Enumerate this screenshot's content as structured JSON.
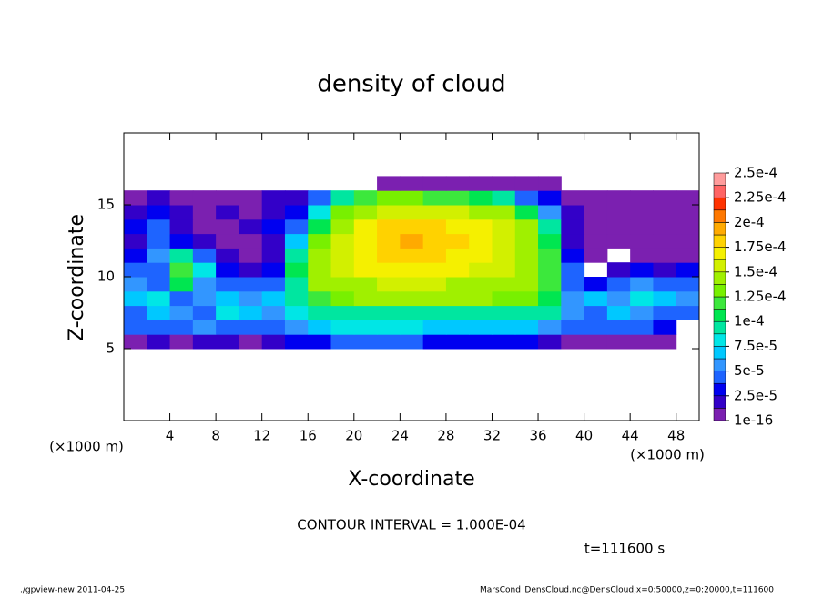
{
  "chart_data": {
    "type": "heatmap",
    "title": "density of cloud",
    "x_label": "X-coordinate",
    "y_label": "Z-coordinate",
    "x_units": "(×1000 m)",
    "y_units": "(×1000 m)",
    "annotations": [
      "CONTOUR INTERVAL = 1.000E-04",
      "t=111600 s"
    ],
    "footer_left": "./gpview-new  2011-04-25",
    "footer_right": "MarsCond_DensCloud.nc@DensCloud,x=0:50000,z=0:20000,t=111600",
    "xlim": [
      0,
      50
    ],
    "xticks": [
      4,
      8,
      12,
      16,
      20,
      24,
      28,
      32,
      36,
      40,
      44,
      48
    ],
    "ylim": [
      0,
      20
    ],
    "yticks": [
      5,
      10,
      15
    ],
    "x": [
      1,
      3,
      5,
      7,
      9,
      11,
      13,
      15,
      17,
      19,
      21,
      23,
      25,
      27,
      29,
      31,
      33,
      35,
      37,
      39,
      41,
      43,
      45,
      47,
      49
    ],
    "y": [
      5.5,
      6.5,
      7.5,
      8.5,
      9.5,
      10.5,
      11.5,
      12.5,
      13.5,
      14.5,
      15.5,
      16.5
    ],
    "z": [
      [
        1e-05,
        2e-05,
        1e-05,
        2e-05,
        2e-05,
        1e-05,
        2e-05,
        3e-05,
        3e-05,
        4e-05,
        4e-05,
        4e-05,
        4e-05,
        3e-05,
        3e-05,
        3e-05,
        3e-05,
        3e-05,
        2e-05,
        1e-05,
        1e-05,
        1e-05,
        1e-05,
        1e-05,
        null
      ],
      [
        4e-05,
        5e-05,
        4e-05,
        6e-05,
        5e-05,
        4e-05,
        5e-05,
        6e-05,
        7e-05,
        8e-05,
        8e-05,
        8e-05,
        8e-05,
        7e-05,
        7e-05,
        7e-05,
        7e-05,
        7e-05,
        6e-05,
        5e-05,
        4e-05,
        5e-05,
        4e-05,
        3e-05,
        null
      ],
      [
        5e-05,
        7e-05,
        6e-05,
        5e-05,
        8e-05,
        7e-05,
        6e-05,
        8e-05,
        9e-05,
        0.0001,
        0.0001,
        0.0001,
        0.0001,
        0.0001,
        0.0001,
        0.0001,
        0.0001,
        0.0001,
        9e-05,
        6e-05,
        5e-05,
        7e-05,
        6e-05,
        5e-05,
        4e-05
      ],
      [
        7e-05,
        8e-05,
        5e-05,
        6e-05,
        7e-05,
        6e-05,
        7e-05,
        9e-05,
        0.00012,
        0.00013,
        0.00014,
        0.00014,
        0.00014,
        0.00014,
        0.00014,
        0.00014,
        0.00013,
        0.00013,
        0.00011,
        6e-05,
        7e-05,
        6e-05,
        8e-05,
        7e-05,
        6e-05
      ],
      [
        6e-05,
        4e-05,
        0.00011,
        6e-05,
        4e-05,
        5e-05,
        4e-05,
        0.0001,
        0.00014,
        0.00015,
        0.00015,
        0.00016,
        0.00016,
        0.00016,
        0.00015,
        0.00015,
        0.00015,
        0.00014,
        0.00012,
        5e-05,
        3e-05,
        4e-05,
        6e-05,
        5e-05,
        4e-05
      ],
      [
        4e-05,
        5e-05,
        0.00012,
        8e-05,
        3e-05,
        2e-05,
        3e-05,
        0.00011,
        0.00015,
        0.00016,
        0.00017,
        0.00017,
        0.00017,
        0.00017,
        0.00017,
        0.00016,
        0.00016,
        0.00015,
        0.00012,
        4e-05,
        null,
        2e-05,
        3e-05,
        2e-05,
        3e-05
      ],
      [
        3e-05,
        6e-05,
        9e-05,
        4e-05,
        2e-05,
        1e-05,
        2e-05,
        9e-05,
        0.00014,
        0.00016,
        0.00017,
        0.00018,
        0.00018,
        0.00018,
        0.00017,
        0.00017,
        0.00016,
        0.00015,
        0.00012,
        3e-05,
        1e-05,
        null,
        1e-05,
        1e-05,
        1e-05
      ],
      [
        2e-05,
        5e-05,
        3e-05,
        2e-05,
        1e-05,
        1e-05,
        2e-05,
        7e-05,
        0.00013,
        0.00016,
        0.00017,
        0.00018,
        0.00019,
        0.00018,
        0.00018,
        0.00017,
        0.00016,
        0.00015,
        0.00011,
        2e-05,
        1e-05,
        1e-05,
        1e-05,
        1e-05,
        1e-05
      ],
      [
        3e-05,
        4e-05,
        2e-05,
        1e-05,
        1e-05,
        2e-05,
        3e-05,
        5e-05,
        0.00011,
        0.00015,
        0.00017,
        0.00018,
        0.00018,
        0.00018,
        0.00017,
        0.00017,
        0.00016,
        0.00014,
        9e-05,
        2e-05,
        1e-05,
        1e-05,
        1e-05,
        1e-05,
        1e-05
      ],
      [
        2e-05,
        3e-05,
        2e-05,
        1e-05,
        2e-05,
        1e-05,
        2e-05,
        3e-05,
        8e-05,
        0.00013,
        0.00015,
        0.00016,
        0.00016,
        0.00016,
        0.00016,
        0.00015,
        0.00014,
        0.00011,
        6e-05,
        2e-05,
        1e-05,
        1e-05,
        1e-05,
        1e-05,
        1e-05
      ],
      [
        1e-05,
        2e-05,
        1e-05,
        1e-05,
        1e-05,
        1e-05,
        2e-05,
        2e-05,
        4e-05,
        9e-05,
        0.00012,
        0.00013,
        0.00013,
        0.00012,
        0.00012,
        0.00011,
        9e-05,
        5e-05,
        3e-05,
        1e-05,
        1e-05,
        1e-05,
        1e-05,
        1e-05,
        1e-05
      ],
      [
        null,
        null,
        null,
        null,
        null,
        null,
        null,
        null,
        null,
        null,
        null,
        1e-05,
        1e-05,
        1e-05,
        1e-05,
        1e-05,
        1e-05,
        1e-05,
        1e-05,
        null,
        null,
        null,
        null,
        null,
        null
      ]
    ],
    "colorbar_ticks": [
      {
        "value": 1e-16,
        "label": "1e-16"
      },
      {
        "value": 2.5e-05,
        "label": "2.5e-5"
      },
      {
        "value": 5e-05,
        "label": "5e-5"
      },
      {
        "value": 7.5e-05,
        "label": "7.5e-5"
      },
      {
        "value": 0.0001,
        "label": "1e-4"
      },
      {
        "value": 0.000125,
        "label": "1.25e-4"
      },
      {
        "value": 0.00015,
        "label": "1.5e-4"
      },
      {
        "value": 0.000175,
        "label": "1.75e-4"
      },
      {
        "value": 0.0002,
        "label": "2e-4"
      },
      {
        "value": 0.000225,
        "label": "2.25e-4"
      },
      {
        "value": 0.00025,
        "label": "2.5e-4"
      }
    ],
    "colors": [
      "#7b20b0",
      "#3300c8",
      "#0000f0",
      "#1e64ff",
      "#3296ff",
      "#00c8ff",
      "#00e6e6",
      "#00e6a0",
      "#00e650",
      "#3ce83c",
      "#78f000",
      "#a0f000",
      "#d2f000",
      "#f5f000",
      "#ffd200",
      "#ffaa00",
      "#ff7800",
      "#ff3200",
      "#ff6464",
      "#ff9c9c"
    ]
  }
}
